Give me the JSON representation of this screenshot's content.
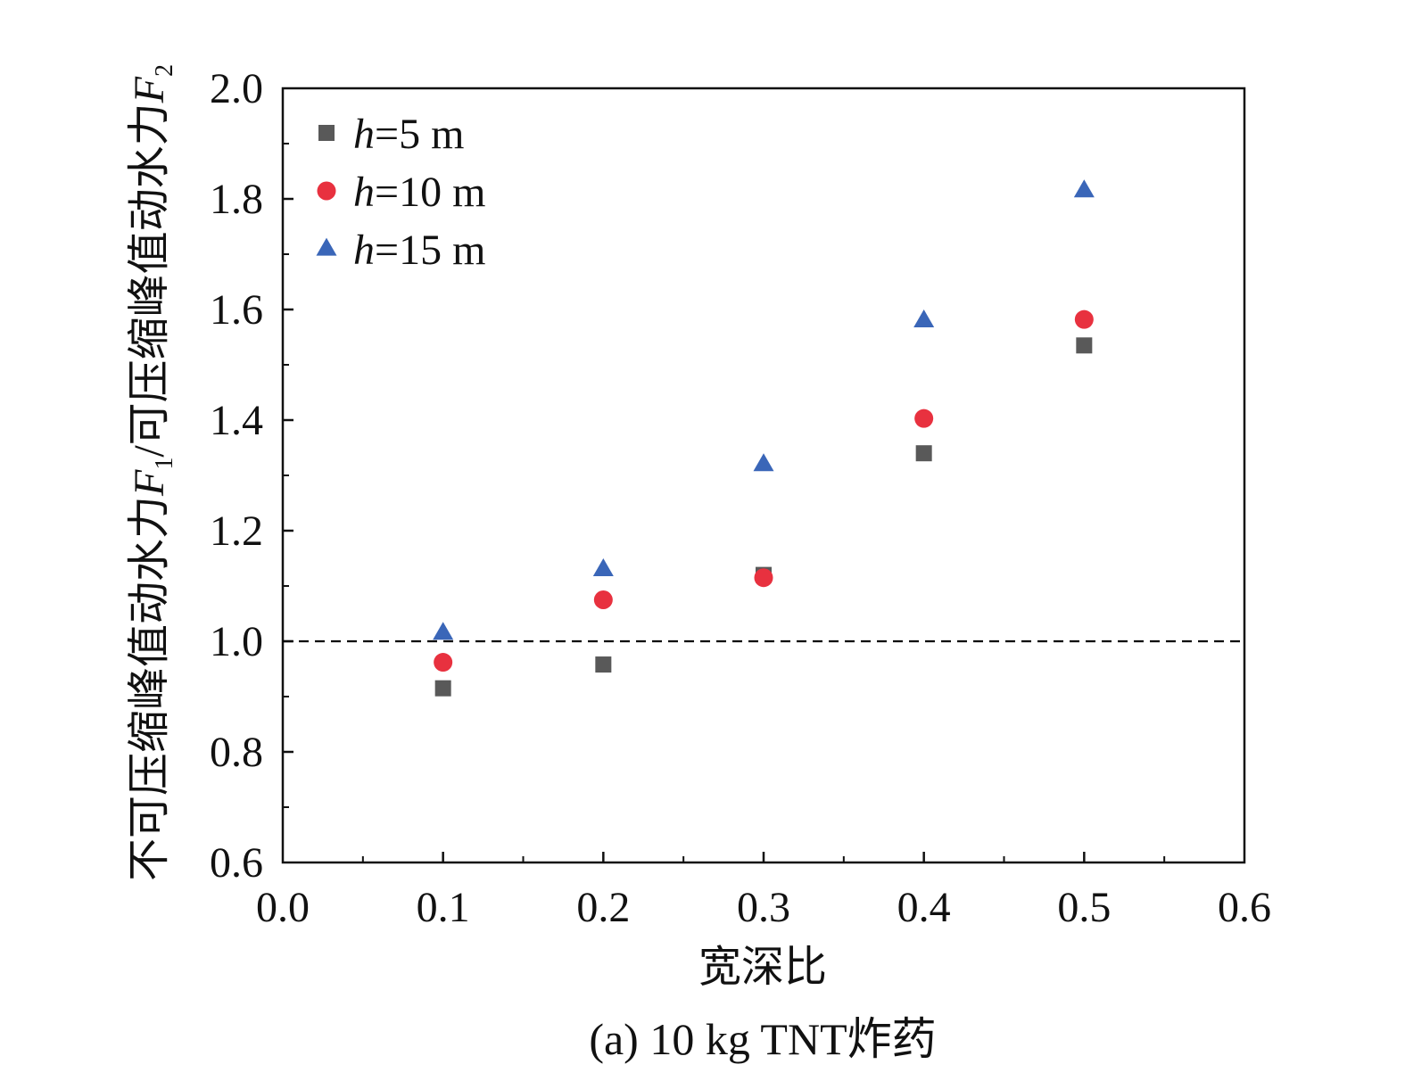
{
  "chart_data": {
    "type": "scatter",
    "title": "",
    "caption": "(a) 10 kg TNT炸药",
    "xlabel": "宽深比",
    "ylabel": {
      "prefix": "不可压缩峰值动水力",
      "var1": "F",
      "sub1": "1",
      "middle": "/可压缩峰值动水力",
      "var2": "F",
      "sub2": "2"
    },
    "xlim": [
      0.0,
      0.6
    ],
    "ylim": [
      0.6,
      2.0
    ],
    "xticks": [
      "0.0",
      "0.1",
      "0.2",
      "0.3",
      "0.4",
      "0.5",
      "0.6"
    ],
    "yticks": [
      "0.6",
      "0.8",
      "1.0",
      "1.2",
      "1.4",
      "1.6",
      "1.8",
      "2.0"
    ],
    "reference_line": {
      "y": 1.0,
      "style": "dashed",
      "color": "#000000"
    },
    "legend_position": "top-left",
    "x": [
      0.1,
      0.2,
      0.3,
      0.4,
      0.5
    ],
    "series": [
      {
        "name_var": "h",
        "name_rest": "=5 m",
        "marker": "square",
        "color": "#595959",
        "values": [
          0.915,
          0.958,
          1.12,
          1.34,
          1.535
        ]
      },
      {
        "name_var": "h",
        "name_rest": "=10 m",
        "marker": "circle",
        "color": "#e8313f",
        "values": [
          0.962,
          1.075,
          1.115,
          1.403,
          1.582
        ]
      },
      {
        "name_var": "h",
        "name_rest": "=15 m",
        "marker": "triangle",
        "color": "#3a66b8",
        "values": [
          1.015,
          1.13,
          1.32,
          1.58,
          1.815
        ]
      }
    ]
  }
}
